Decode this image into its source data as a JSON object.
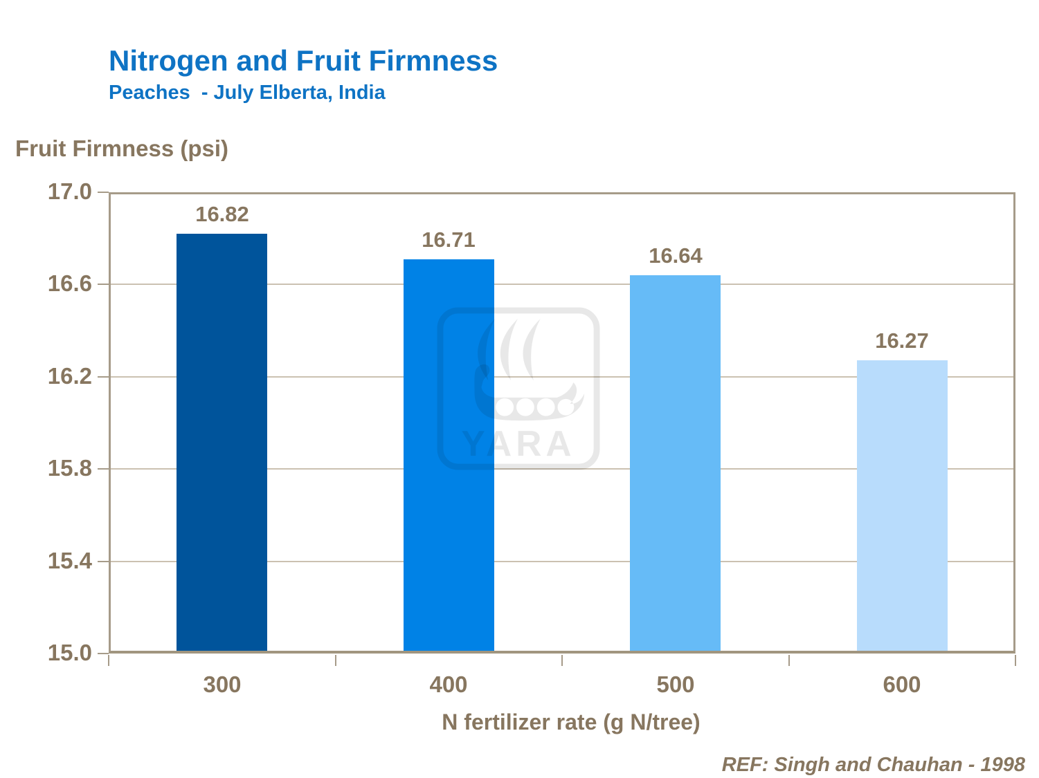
{
  "header": {
    "title": "Nitrogen and Fruit Firmness",
    "subtitle": "Peaches  - July Elberta, India"
  },
  "chart_data": {
    "type": "bar",
    "title": "Nitrogen and Fruit Firmness",
    "subtitle": "Peaches  - July Elberta, India",
    "categories": [
      "300",
      "400",
      "500",
      "600"
    ],
    "values": [
      16.82,
      16.71,
      16.64,
      16.27
    ],
    "value_labels": [
      "16.82",
      "16.71",
      "16.64",
      "16.27"
    ],
    "xlabel": "N fertilizer rate (g N/tree)",
    "ylabel": "Fruit Firmness (psi)",
    "ylim": [
      15.0,
      17.0
    ],
    "ytick_step": 0.4,
    "yticks": [
      "17.0",
      "16.6",
      "16.2",
      "15.8",
      "15.4",
      "15.0"
    ],
    "grid": true,
    "legend_position": "none",
    "bar_colors": [
      "#00549B",
      "#0082E6",
      "#66BBF7",
      "#B8DCFC"
    ]
  },
  "watermark": {
    "name": "yara-logo",
    "text": "YARA"
  },
  "footer": {
    "reference": "REF: Singh and Chauhan - 1998"
  },
  "colors": {
    "title_blue": "#0E73C4",
    "axis_text_brown": "#87765F",
    "grid_line": "#CBC1B1",
    "axis_line": "#A69B89",
    "watermark_gray": "rgba(0,0,0,0.09)"
  }
}
